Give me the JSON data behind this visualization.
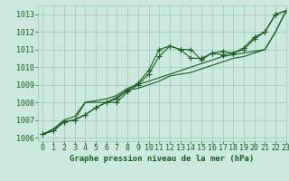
{
  "title": "Graphe pression niveau de la mer (hPa)",
  "bg_color": "#cce8df",
  "grid_color": "#9ec8b8",
  "line_color": "#1a5c20",
  "xlim": [
    -0.5,
    23
  ],
  "ylim": [
    1005.8,
    1013.5
  ],
  "xticks": [
    0,
    1,
    2,
    3,
    4,
    5,
    6,
    7,
    8,
    9,
    10,
    11,
    12,
    13,
    14,
    15,
    16,
    17,
    18,
    19,
    20,
    21,
    22,
    23
  ],
  "yticks": [
    1006,
    1007,
    1008,
    1009,
    1010,
    1011,
    1012,
    1013
  ],
  "series": [
    [
      1006.2,
      1006.4,
      1006.9,
      1007.0,
      1007.3,
      1007.7,
      1008.0,
      1008.0,
      1008.6,
      1009.0,
      1009.6,
      1010.6,
      1011.2,
      1011.0,
      1011.0,
      1010.4,
      1010.8,
      1010.9,
      1010.8,
      1011.1,
      1011.7,
      1012.0,
      1013.0,
      1013.2
    ],
    [
      1006.2,
      1006.4,
      1006.9,
      1007.0,
      1007.3,
      1007.7,
      1008.0,
      1008.2,
      1008.7,
      1009.1,
      1009.8,
      1011.0,
      1011.2,
      1011.0,
      1010.5,
      1010.5,
      1010.8,
      1010.7,
      1010.8,
      1011.0,
      1011.6,
      1012.0,
      1013.0,
      1013.2
    ],
    [
      1006.2,
      1006.4,
      1006.9,
      1007.0,
      1008.0,
      1008.0,
      1008.0,
      1008.3,
      1008.7,
      1008.8,
      1009.0,
      1009.2,
      1009.5,
      1009.6,
      1009.7,
      1009.9,
      1010.1,
      1010.3,
      1010.5,
      1010.6,
      1010.8,
      1011.0,
      1012.0,
      1013.2
    ],
    [
      1006.2,
      1006.5,
      1007.0,
      1007.2,
      1008.0,
      1008.1,
      1008.2,
      1008.4,
      1008.8,
      1009.0,
      1009.2,
      1009.4,
      1009.6,
      1009.8,
      1010.0,
      1010.2,
      1010.4,
      1010.6,
      1010.7,
      1010.8,
      1010.9,
      1011.0,
      1012.0,
      1013.2
    ]
  ],
  "marker_series": [
    0,
    1
  ],
  "marker": "+",
  "marker_size": 4,
  "font_color": "#1a5c20",
  "xlabel_fontsize": 6.5,
  "tick_fontsize": 6,
  "linewidth": 0.8
}
